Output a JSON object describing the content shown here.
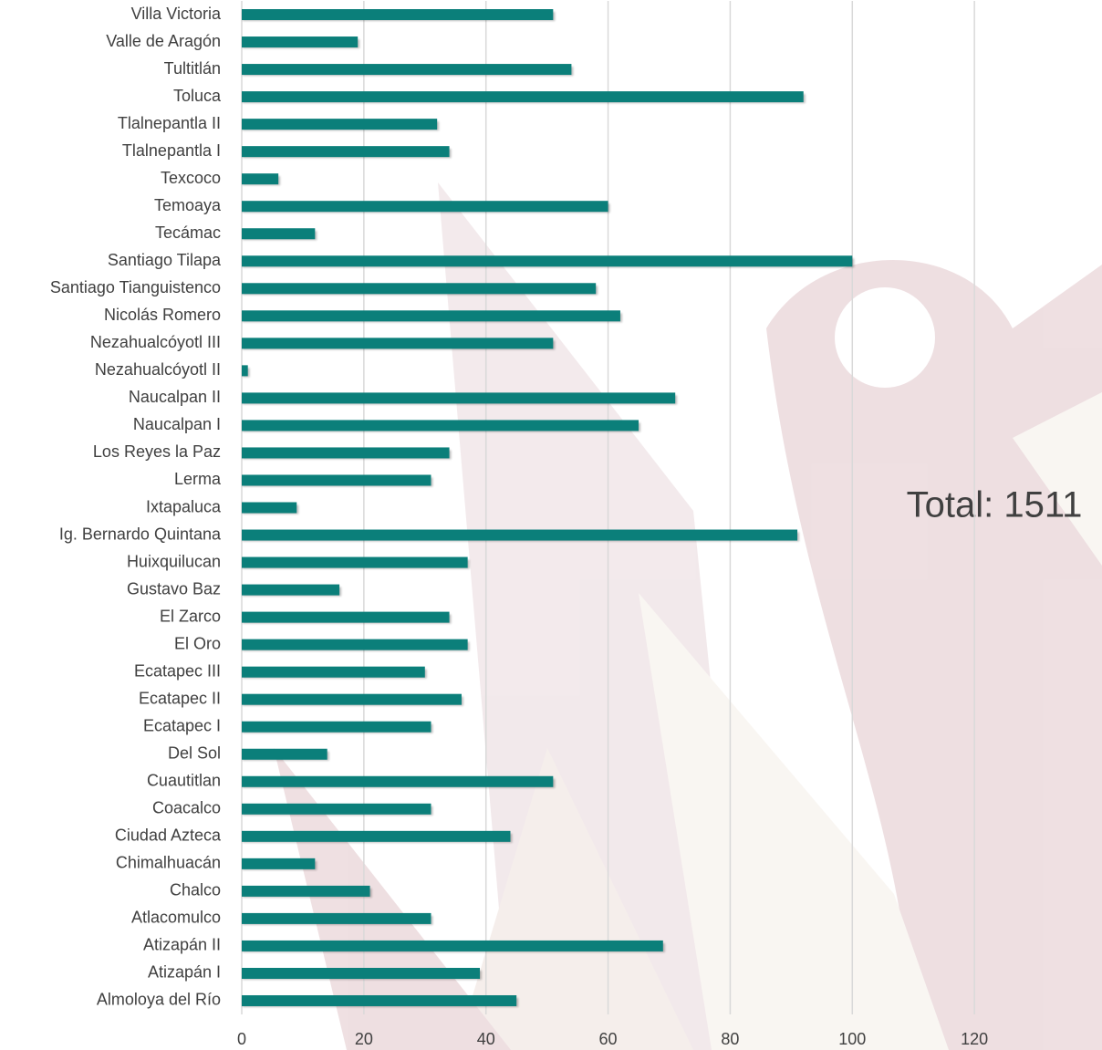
{
  "chart_data": {
    "type": "bar",
    "orientation": "horizontal",
    "categories": [
      "Villa Victoria",
      "Valle de Aragón",
      "Tultitlán",
      "Toluca",
      "Tlalnepantla II",
      "Tlalnepantla I",
      "Texcoco",
      "Temoaya",
      "Tecámac",
      "Santiago Tilapa",
      "Santiago Tianguistenco",
      "Nicolás Romero",
      "Nezahualcóyotl III",
      "Nezahualcóyotl II",
      "Naucalpan II",
      "Naucalpan I",
      "Los Reyes la Paz",
      "Lerma",
      "Ixtapaluca",
      "Ig. Bernardo Quintana",
      "Huixquilucan",
      "Gustavo Baz",
      "El Zarco",
      "El Oro",
      "Ecatapec III",
      "Ecatapec II",
      "Ecatapec I",
      "Del Sol",
      "Cuautitlan",
      "Coacalco",
      "Ciudad Azteca",
      "Chimalhuacán",
      "Chalco",
      "Atlacomulco",
      "Atizapán II",
      "Atizapán I",
      "Almoloya del Río"
    ],
    "values": [
      51,
      19,
      54,
      92,
      32,
      34,
      6,
      60,
      12,
      100,
      58,
      62,
      51,
      1,
      71,
      65,
      34,
      31,
      9,
      91,
      37,
      16,
      34,
      37,
      30,
      36,
      31,
      14,
      51,
      31,
      44,
      12,
      21,
      31,
      69,
      39,
      45
    ],
    "color": "#0b7f7a",
    "xlim": [
      0,
      140
    ],
    "xticks": [
      0,
      20,
      40,
      60,
      80,
      100,
      120
    ],
    "grid": true,
    "annotation": "Total: 1511"
  }
}
